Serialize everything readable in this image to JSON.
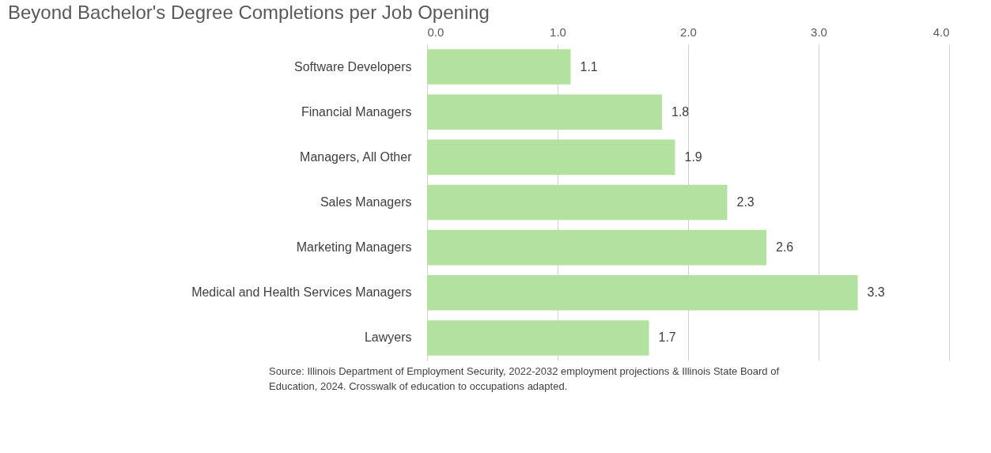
{
  "chart_data": {
    "type": "bar",
    "orientation": "horizontal",
    "title": "Beyond Bachelor's Degree Completions per Job Opening",
    "categories": [
      "Software Developers",
      "Financial Managers",
      "Managers, All Other",
      "Sales Managers",
      "Marketing Managers",
      "Medical and Health Services Managers",
      "Lawyers"
    ],
    "values": [
      1.1,
      1.8,
      1.9,
      2.3,
      2.6,
      3.3,
      1.7
    ],
    "color": "#b3e2a0",
    "xlim": [
      0,
      4
    ],
    "xticks": [
      {
        "value": 0,
        "label": "0.0"
      },
      {
        "value": 1,
        "label": "1.0"
      },
      {
        "value": 2,
        "label": "2.0"
      },
      {
        "value": 3,
        "label": "3.0"
      },
      {
        "value": 4,
        "label": "4.0"
      }
    ],
    "grid": "x",
    "data_labels": true,
    "annotations": [
      "Source: Illinois Department of Employment Security, 2022-2032 employment projections & Illinois State Board of\nEducation, 2024.  Crosswalk of education to occupations adapted."
    ]
  }
}
